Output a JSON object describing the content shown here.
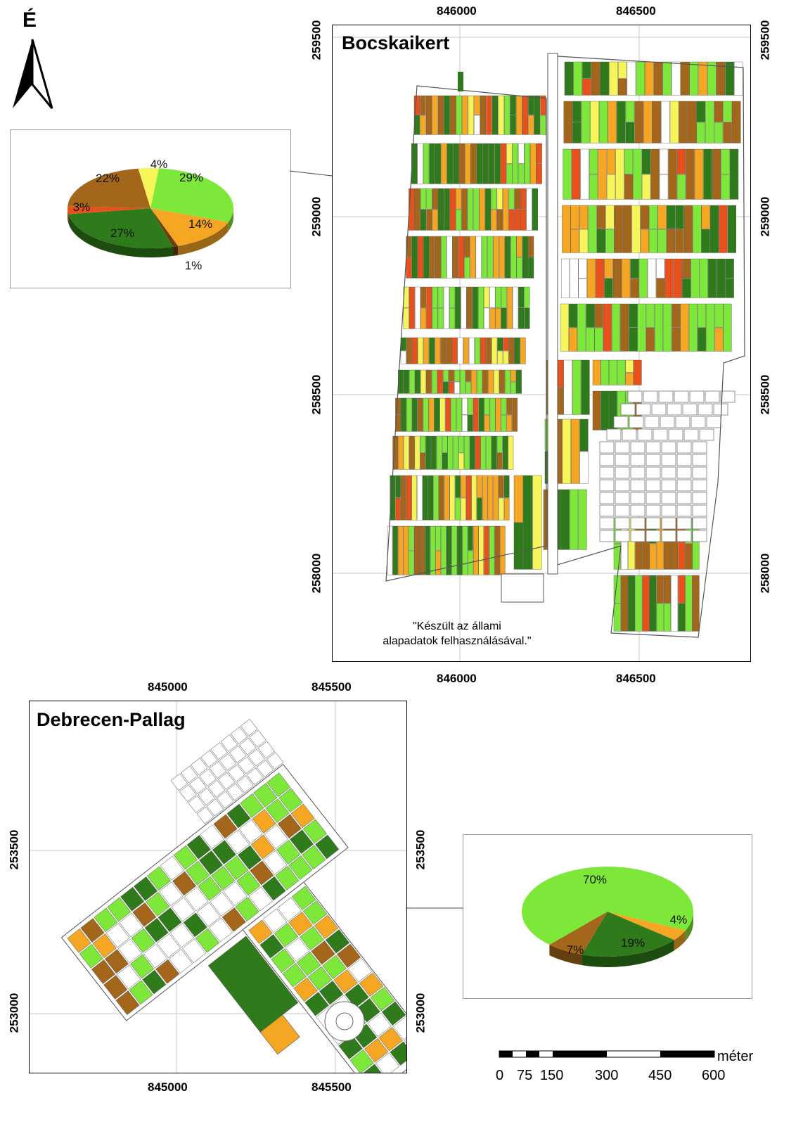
{
  "north_arrow": {
    "label": "É",
    "icon": "north-arrow-icon"
  },
  "bocskaikert": {
    "title": "Bocskaikert",
    "x_ticks": [
      "846000",
      "846500"
    ],
    "y_ticks": [
      "259500",
      "259000",
      "258500",
      "258000"
    ],
    "credit_line1": "\"Készült az állami",
    "credit_line2": "alapadatok felhasználásával.\""
  },
  "debrecen_pallag": {
    "title": "Debrecen-Pallag",
    "x_ticks": [
      "845000",
      "845500"
    ],
    "y_ticks": [
      "253500",
      "253000"
    ]
  },
  "pie_bocskaikert": {
    "slices": [
      {
        "label": "4%",
        "value": 4,
        "color": "#f5f55a"
      },
      {
        "label": "29%",
        "value": 29,
        "color": "#7ee83a"
      },
      {
        "label": "14%",
        "value": 14,
        "color": "#f5a623"
      },
      {
        "label": "1%",
        "value": 1,
        "color": "#6b3d10"
      },
      {
        "label": "27%",
        "value": 27,
        "color": "#2f7a1a"
      },
      {
        "label": "3%",
        "value": 3,
        "color": "#e8501c"
      },
      {
        "label": "22%",
        "value": 22,
        "color": "#a3661a"
      }
    ]
  },
  "pie_pallag": {
    "slices": [
      {
        "label": "70%",
        "value": 70,
        "color": "#7ee83a"
      },
      {
        "label": "4%",
        "value": 4,
        "color": "#f5a623"
      },
      {
        "label": "19%",
        "value": 19,
        "color": "#2f7a1a"
      },
      {
        "label": "7%",
        "value": 7,
        "color": "#a3661a"
      }
    ]
  },
  "scale_bar": {
    "unit": "méter",
    "labels": [
      "0",
      "75",
      "150",
      "300",
      "450",
      "600"
    ]
  },
  "colors": {
    "light_green": "#7ee83a",
    "dark_green": "#2f7a1a",
    "orange": "#f5a623",
    "brown": "#a3661a",
    "yellow": "#f5f55a",
    "red": "#e8501c",
    "dark_brown": "#6b3d10"
  }
}
